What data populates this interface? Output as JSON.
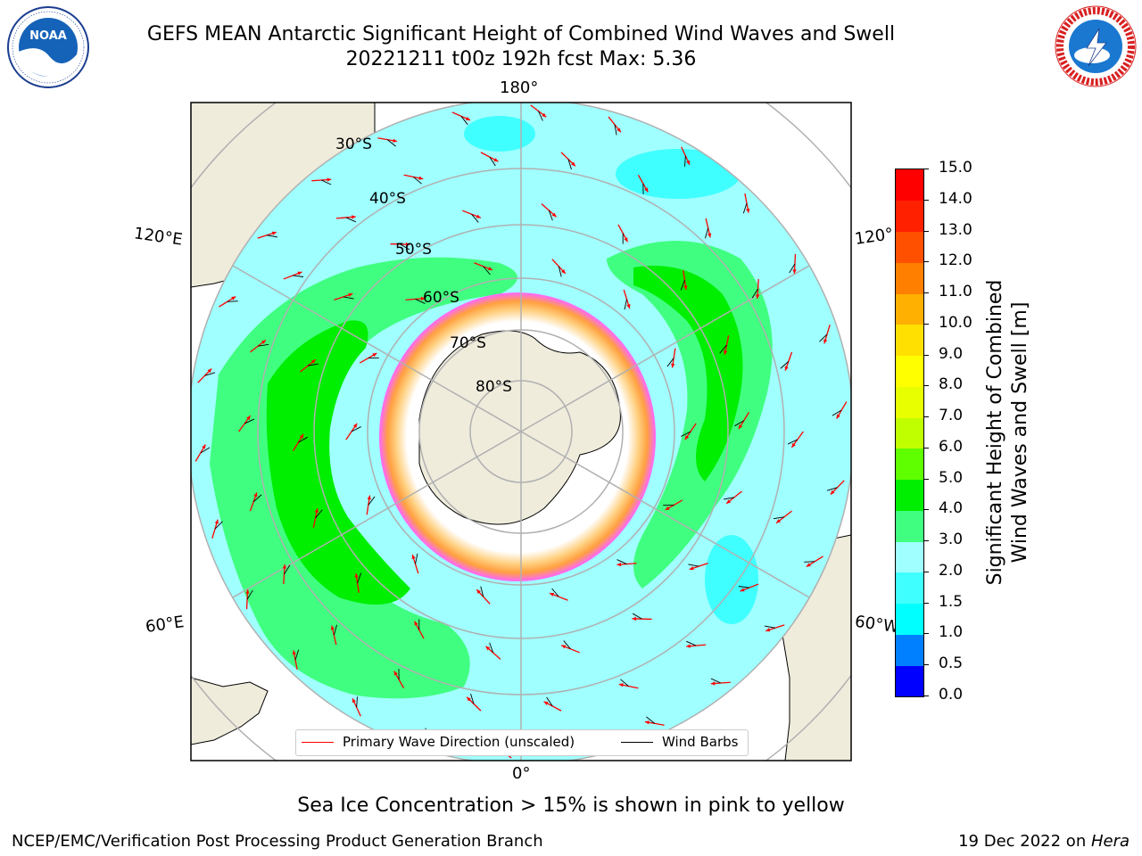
{
  "header": {
    "title_line1": "GEFS MEAN Antarctic Significant Height of Combined Wind Waves and Swell",
    "title_line2": "20221211 t00z 192h fcst   Max: 5.36"
  },
  "logos": {
    "left": {
      "name": "noaa-logo",
      "text": "NOAA",
      "ring_text": "NATIONAL OCEANIC AND ATMOSPHERIC ADMINISTRATION · U.S. DEPARTMENT OF COMMERCE"
    },
    "right": {
      "name": "nws-logo",
      "ring_text": "NATIONAL WEATHER SERVICE"
    }
  },
  "map": {
    "projection": "south-polar-stereographic",
    "longitude_labels": {
      "top": "180°",
      "bottom": "0°",
      "upper_left": "120°E",
      "lower_left": "60°E",
      "upper_right": "120°",
      "lower_right": "60°W"
    },
    "latitude_labels": [
      "30°S",
      "40°S",
      "50°S",
      "60°S",
      "70°S",
      "80°S"
    ],
    "max_value": 5.36,
    "colors": {
      "land": "#efecdc",
      "ice_interior": "#ffffff",
      "ice_edge": [
        "#ff66ff",
        "#ffa040",
        "#ffd080"
      ]
    }
  },
  "legend": {
    "items": [
      {
        "label": "Primary Wave Direction (unscaled)",
        "color": "#ff0000"
      },
      {
        "label": "Wind Barbs",
        "color": "#000000"
      }
    ]
  },
  "colorbar": {
    "title_line1": "Significant Height of Combined",
    "title_line2": "Wind Waves and Swell [m]",
    "ticks": [
      "0.0",
      "0.5",
      "1.0",
      "1.5",
      "2.0",
      "3.0",
      "4.0",
      "5.0",
      "6.0",
      "7.0",
      "8.0",
      "9.0",
      "10.0",
      "11.0",
      "12.0",
      "13.0",
      "14.0",
      "15.0"
    ],
    "colors": [
      "#0000ff",
      "#0080ff",
      "#00ffff",
      "#40ffff",
      "#a0ffff",
      "#40ff80",
      "#00ee00",
      "#60ff00",
      "#c0ff00",
      "#e8ff00",
      "#ffff00",
      "#ffe000",
      "#ffb000",
      "#ff8000",
      "#ff5000",
      "#ff2000",
      "#ff0000"
    ]
  },
  "footer": {
    "subtitle": "Sea Ice Concentration > 15% is shown in pink to yellow",
    "left": "NCEP/EMC/Verification Post Processing Product Generation Branch",
    "right_date": "19 Dec 2022 on ",
    "right_machine": "Hera"
  }
}
